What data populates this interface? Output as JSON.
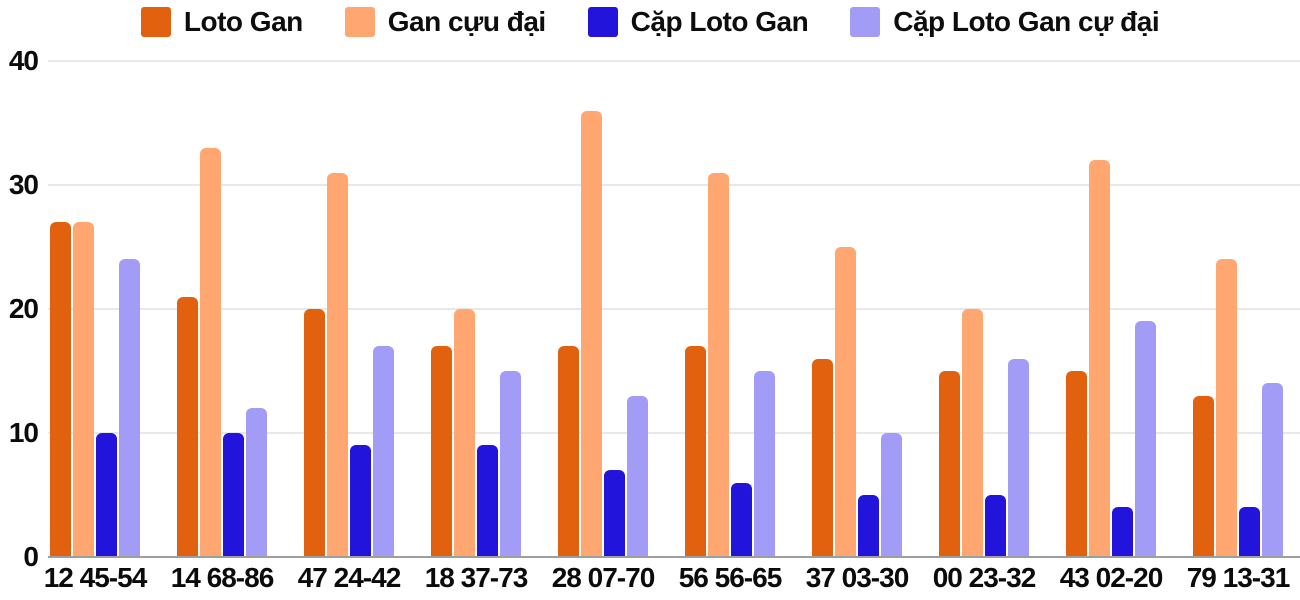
{
  "chart_data": {
    "type": "bar",
    "title": "",
    "xlabel": "",
    "ylabel": "",
    "ylim": [
      0,
      40
    ],
    "yticks": [
      0,
      10,
      20,
      30,
      40
    ],
    "grid": true,
    "legend_position": "top",
    "background_color": "#ffffff",
    "gridline_color": "#e8e8e8",
    "baseline_color": "#9e9e9e",
    "categories": [
      "12 45-54",
      "14 68-86",
      "47 24-42",
      "18 37-73",
      "28 07-70",
      "56 56-65",
      "37 03-30",
      "00 23-32",
      "43 02-20",
      "79 13-31"
    ],
    "series": [
      {
        "name": "Loto Gan",
        "color": "#e2610f",
        "values": [
          27,
          21,
          20,
          17,
          17,
          17,
          16,
          15,
          15,
          13
        ]
      },
      {
        "name": "Gan cựu đại",
        "color": "#ffa671",
        "values": [
          27,
          33,
          31,
          20,
          36,
          31,
          25,
          20,
          32,
          24
        ]
      },
      {
        "name": "Cặp Loto Gan",
        "color": "#2314dc",
        "values": [
          10,
          10,
          9,
          9,
          7,
          6,
          5,
          5,
          4,
          4
        ]
      },
      {
        "name": "Cặp Loto Gan cự đại",
        "color": "#a29cf7",
        "values": [
          24,
          12,
          17,
          15,
          13,
          15,
          10,
          16,
          19,
          14
        ]
      }
    ]
  }
}
